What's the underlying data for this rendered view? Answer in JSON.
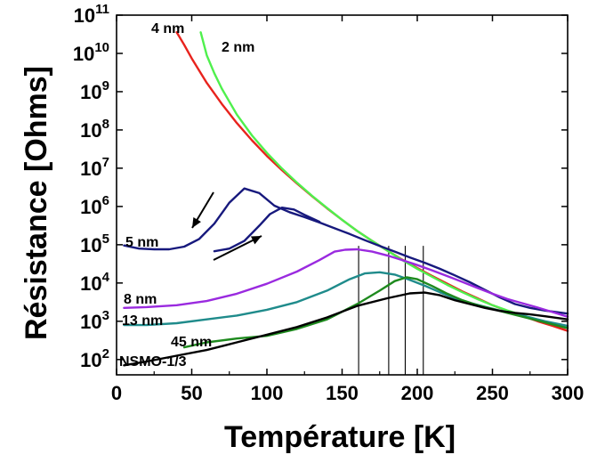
{
  "chart_data": {
    "type": "line",
    "xlabel": "Température [K]",
    "ylabel": "Résistance [Ohms]",
    "xlim": [
      0,
      300
    ],
    "ylim_log10": [
      1.6,
      11
    ],
    "y_scale": "log",
    "x_ticks": [
      0,
      50,
      100,
      150,
      200,
      250,
      300
    ],
    "y_tick_exponents": [
      2,
      3,
      4,
      5,
      6,
      7,
      8,
      9,
      10,
      11
    ],
    "y_tick_base": "10",
    "grid": false,
    "legend": "inline labels",
    "series": [
      {
        "name": "4 nm",
        "color": "#e8231d",
        "points": [
          [
            40,
            10.55
          ],
          [
            45,
            10.22
          ],
          [
            50,
            9.87
          ],
          [
            60,
            9.23
          ],
          [
            70,
            8.68
          ],
          [
            80,
            8.18
          ],
          [
            90,
            7.73
          ],
          [
            100,
            7.32
          ],
          [
            110,
            6.95
          ],
          [
            120,
            6.6
          ],
          [
            130,
            6.27
          ],
          [
            140,
            5.95
          ],
          [
            150,
            5.65
          ],
          [
            160,
            5.36
          ],
          [
            170,
            5.1
          ],
          [
            180,
            4.85
          ],
          [
            190,
            4.61
          ],
          [
            200,
            4.39
          ],
          [
            210,
            4.18
          ],
          [
            220,
            3.98
          ],
          [
            230,
            3.78
          ],
          [
            240,
            3.6
          ],
          [
            250,
            3.42
          ],
          [
            260,
            3.27
          ],
          [
            270,
            3.14
          ],
          [
            280,
            3.0
          ],
          [
            290,
            2.88
          ],
          [
            300,
            2.75
          ]
        ]
      },
      {
        "name": "2 nm",
        "color": "#4ff04d",
        "points": [
          [
            56,
            10.55
          ],
          [
            60,
            9.95
          ],
          [
            65,
            9.48
          ],
          [
            70,
            9.08
          ],
          [
            80,
            8.4
          ],
          [
            90,
            7.86
          ],
          [
            100,
            7.4
          ],
          [
            110,
            6.99
          ],
          [
            120,
            6.62
          ],
          [
            130,
            6.28
          ],
          [
            140,
            5.96
          ],
          [
            150,
            5.65
          ],
          [
            160,
            5.36
          ],
          [
            170,
            5.1
          ],
          [
            180,
            4.85
          ],
          [
            190,
            4.6
          ],
          [
            200,
            4.37
          ],
          [
            210,
            4.16
          ],
          [
            220,
            3.95
          ],
          [
            230,
            3.76
          ],
          [
            240,
            3.58
          ],
          [
            250,
            3.42
          ],
          [
            260,
            3.28
          ],
          [
            270,
            3.16
          ],
          [
            280,
            3.04
          ],
          [
            290,
            2.94
          ],
          [
            300,
            2.85
          ]
        ]
      },
      {
        "name": "5 nm",
        "color": "#17197d",
        "points": [
          [
            5,
            4.98
          ],
          [
            15,
            4.9
          ],
          [
            25,
            4.88
          ],
          [
            35,
            4.88
          ],
          [
            45,
            4.95
          ],
          [
            55,
            5.15
          ],
          [
            65,
            5.55
          ],
          [
            75,
            6.1
          ],
          [
            85,
            6.47
          ],
          [
            95,
            6.35
          ],
          [
            105,
            6.02
          ],
          [
            115,
            5.85
          ],
          [
            125,
            5.72
          ],
          [
            135,
            5.58
          ],
          [
            145,
            5.43
          ],
          [
            155,
            5.28
          ],
          [
            165,
            5.12
          ],
          [
            175,
            4.97
          ],
          [
            185,
            4.82
          ],
          [
            195,
            4.67
          ],
          [
            205,
            4.53
          ],
          [
            215,
            4.37
          ],
          [
            225,
            4.2
          ],
          [
            235,
            4.02
          ],
          [
            245,
            3.82
          ],
          [
            255,
            3.62
          ],
          [
            265,
            3.45
          ],
          [
            275,
            3.35
          ],
          [
            285,
            3.28
          ],
          [
            300,
            3.2
          ]
        ]
      },
      {
        "name": "",
        "color": "#17197d",
        "points": [
          [
            65,
            4.83
          ],
          [
            75,
            4.9
          ],
          [
            85,
            5.1
          ],
          [
            95,
            5.5
          ],
          [
            102,
            5.8
          ],
          [
            110,
            5.97
          ],
          [
            118,
            5.92
          ],
          [
            125,
            5.78
          ],
          [
            135,
            5.6
          ]
        ]
      },
      {
        "name": "8 nm",
        "color": "#9a2adf",
        "points": [
          [
            5,
            3.35
          ],
          [
            20,
            3.37
          ],
          [
            40,
            3.42
          ],
          [
            60,
            3.53
          ],
          [
            80,
            3.72
          ],
          [
            100,
            3.98
          ],
          [
            120,
            4.3
          ],
          [
            135,
            4.6
          ],
          [
            145,
            4.82
          ],
          [
            152,
            4.87
          ],
          [
            160,
            4.88
          ],
          [
            170,
            4.82
          ],
          [
            180,
            4.72
          ],
          [
            190,
            4.6
          ],
          [
            200,
            4.47
          ],
          [
            210,
            4.33
          ],
          [
            220,
            4.18
          ],
          [
            230,
            4.03
          ],
          [
            240,
            3.87
          ],
          [
            250,
            3.72
          ],
          [
            260,
            3.58
          ],
          [
            270,
            3.47
          ],
          [
            280,
            3.36
          ],
          [
            290,
            3.24
          ],
          [
            300,
            3.12
          ]
        ]
      },
      {
        "name": "13 nm",
        "color": "#1f8b8b",
        "points": [
          [
            5,
            2.9
          ],
          [
            20,
            2.9
          ],
          [
            40,
            2.95
          ],
          [
            60,
            3.05
          ],
          [
            80,
            3.15
          ],
          [
            100,
            3.3
          ],
          [
            120,
            3.5
          ],
          [
            140,
            3.8
          ],
          [
            155,
            4.1
          ],
          [
            165,
            4.25
          ],
          [
            175,
            4.28
          ],
          [
            185,
            4.22
          ],
          [
            195,
            4.08
          ],
          [
            205,
            3.93
          ],
          [
            215,
            3.76
          ],
          [
            225,
            3.6
          ],
          [
            235,
            3.48
          ],
          [
            245,
            3.38
          ],
          [
            255,
            3.28
          ],
          [
            265,
            3.2
          ],
          [
            275,
            3.1
          ],
          [
            285,
            3.0
          ],
          [
            300,
            2.88
          ]
        ]
      },
      {
        "name": "45 nm",
        "color": "#1e8a1e",
        "points": [
          [
            45,
            2.32
          ],
          [
            60,
            2.45
          ],
          [
            80,
            2.55
          ],
          [
            100,
            2.62
          ],
          [
            120,
            2.8
          ],
          [
            140,
            3.05
          ],
          [
            160,
            3.45
          ],
          [
            175,
            3.8
          ],
          [
            185,
            4.05
          ],
          [
            193,
            4.15
          ],
          [
            200,
            4.1
          ],
          [
            210,
            3.92
          ],
          [
            220,
            3.72
          ],
          [
            230,
            3.55
          ],
          [
            240,
            3.42
          ],
          [
            250,
            3.32
          ],
          [
            260,
            3.22
          ],
          [
            270,
            3.12
          ],
          [
            280,
            3.02
          ],
          [
            290,
            2.92
          ],
          [
            300,
            2.82
          ]
        ]
      },
      {
        "name": "NSMO-1/3",
        "color": "#000000",
        "points": [
          [
            5,
            1.85
          ],
          [
            20,
            1.95
          ],
          [
            40,
            2.1
          ],
          [
            60,
            2.25
          ],
          [
            80,
            2.45
          ],
          [
            100,
            2.65
          ],
          [
            120,
            2.85
          ],
          [
            140,
            3.1
          ],
          [
            160,
            3.4
          ],
          [
            180,
            3.6
          ],
          [
            195,
            3.73
          ],
          [
            205,
            3.75
          ],
          [
            215,
            3.68
          ],
          [
            225,
            3.55
          ],
          [
            235,
            3.45
          ],
          [
            245,
            3.35
          ],
          [
            255,
            3.27
          ],
          [
            265,
            3.22
          ],
          [
            275,
            3.18
          ],
          [
            285,
            3.13
          ],
          [
            300,
            3.05
          ]
        ]
      }
    ],
    "annotations": {
      "labels": [
        {
          "text": "4 nm",
          "color": "#e8231d"
        },
        {
          "text": "2 nm",
          "color": "#4ff04d"
        },
        {
          "text": "5 nm",
          "color": "#17197d"
        },
        {
          "text": "8 nm",
          "color": "#9a2adf"
        },
        {
          "text": "13 nm",
          "color": "#1f8b8b"
        },
        {
          "text": "45 nm",
          "color": "#1e8a1e"
        },
        {
          "text": "NSMO-1/3",
          "color": "#000000"
        }
      ],
      "transition_lines_x": [
        161,
        181,
        192,
        204
      ],
      "arrows": [
        "cooling (down-left)",
        "warming (up-right)"
      ]
    }
  }
}
